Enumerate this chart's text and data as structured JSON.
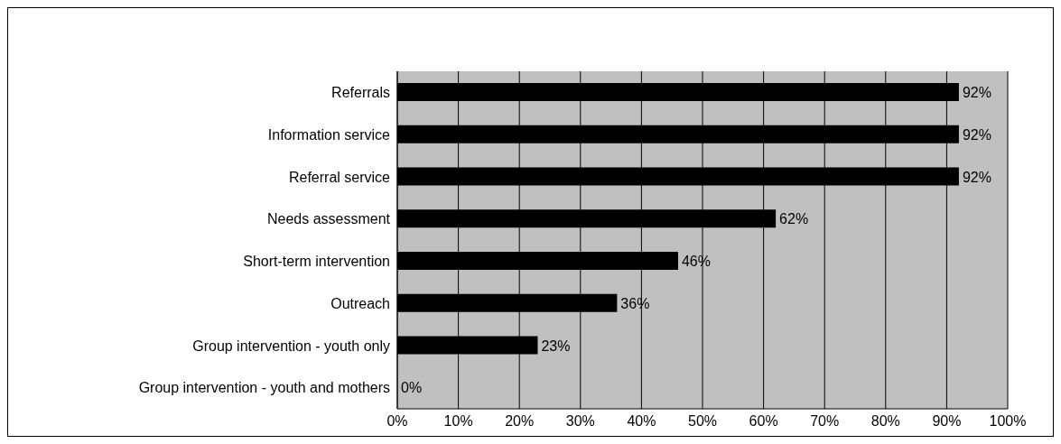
{
  "chart_data": {
    "type": "bar",
    "orientation": "horizontal",
    "categories": [
      "Referrals",
      "Information service",
      "Referral service",
      "Needs assessment",
      "Short-term intervention",
      "Outreach",
      "Group intervention - youth only",
      "Group intervention - youth and mothers"
    ],
    "values": [
      92,
      92,
      92,
      62,
      46,
      36,
      23,
      0
    ],
    "value_labels": [
      "92%",
      "92%",
      "92%",
      "62%",
      "46%",
      "36%",
      "23%",
      "0%"
    ],
    "color": "#000000",
    "xlim": [
      0,
      100
    ],
    "xticks": [
      {
        "value": 0,
        "label": "0%"
      },
      {
        "value": 10,
        "label": "10%"
      },
      {
        "value": 20,
        "label": "20%"
      },
      {
        "value": 30,
        "label": "30%"
      },
      {
        "value": 40,
        "label": "40%"
      },
      {
        "value": 50,
        "label": "50%"
      },
      {
        "value": 60,
        "label": "60%"
      },
      {
        "value": 70,
        "label": "70%"
      },
      {
        "value": 80,
        "label": "80%"
      },
      {
        "value": 90,
        "label": "90%"
      },
      {
        "value": 100,
        "label": "100%"
      }
    ],
    "grid": "x",
    "legend": false
  }
}
